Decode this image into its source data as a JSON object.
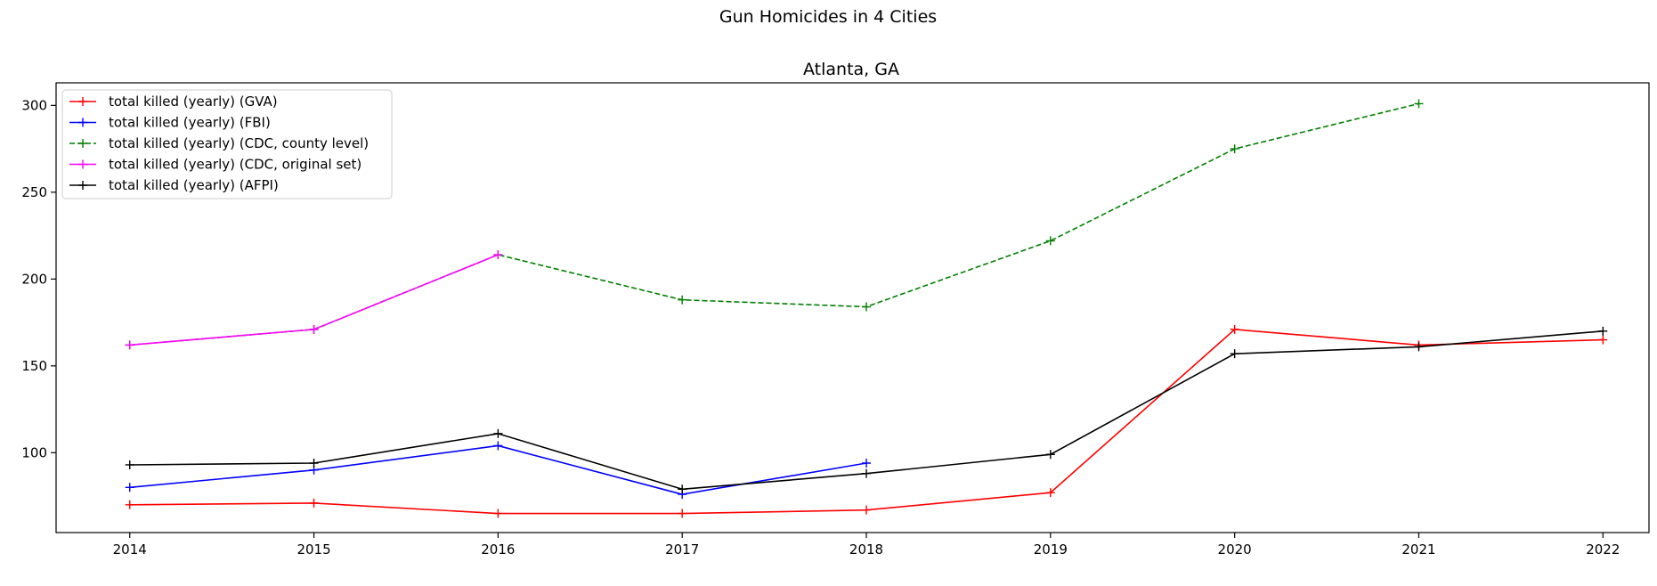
{
  "chart_data": {
    "type": "line",
    "title": "Gun Homicides in 4 Cities",
    "subplot_title": "Atlanta, GA",
    "xlabel": "",
    "ylabel": "",
    "x_ticks": [
      2014,
      2015,
      2016,
      2017,
      2018,
      2019,
      2020,
      2021,
      2022
    ],
    "y_ticks": [
      100,
      150,
      200,
      250,
      300
    ],
    "xlim": [
      2013.6,
      2022.25
    ],
    "ylim": [
      54,
      313
    ],
    "grid": false,
    "legend_position": "top-left",
    "series": [
      {
        "name": "total killed (yearly) (GVA)",
        "color": "#ff0000",
        "linestyle": "solid",
        "marker": "+",
        "points": [
          [
            2014,
            70
          ],
          [
            2015,
            71
          ],
          [
            2016,
            65
          ],
          [
            2017,
            65
          ],
          [
            2018,
            67
          ],
          [
            2019,
            77
          ],
          [
            2020,
            171
          ],
          [
            2021,
            162
          ],
          [
            2022,
            165
          ]
        ]
      },
      {
        "name": "total killed (yearly) (FBI)",
        "color": "#0000ff",
        "linestyle": "solid",
        "marker": "+",
        "points": [
          [
            2014,
            80
          ],
          [
            2015,
            90
          ],
          [
            2016,
            104
          ],
          [
            2017,
            76
          ],
          [
            2018,
            94
          ]
        ]
      },
      {
        "name": "total killed (yearly) (CDC, county level)",
        "color": "#008000",
        "linestyle": "dashed",
        "marker": "+",
        "points": [
          [
            2014,
            162
          ],
          [
            2015,
            171
          ],
          [
            2016,
            214
          ],
          [
            2017,
            188
          ],
          [
            2018,
            184
          ],
          [
            2019,
            222
          ],
          [
            2020,
            275
          ],
          [
            2021,
            301
          ]
        ]
      },
      {
        "name": "total killed (yearly) (CDC, original set)",
        "color": "#ff00ff",
        "linestyle": "solid",
        "marker": "+",
        "points": [
          [
            2014,
            162
          ],
          [
            2015,
            171
          ],
          [
            2016,
            214
          ]
        ]
      },
      {
        "name": "total killed (yearly) (AFPI)",
        "color": "#000000",
        "linestyle": "solid",
        "marker": "+",
        "points": [
          [
            2014,
            93
          ],
          [
            2015,
            94
          ],
          [
            2016,
            111
          ],
          [
            2017,
            79
          ],
          [
            2018,
            88
          ],
          [
            2019,
            99
          ],
          [
            2020,
            157
          ],
          [
            2021,
            161
          ],
          [
            2022,
            170
          ]
        ]
      }
    ]
  }
}
